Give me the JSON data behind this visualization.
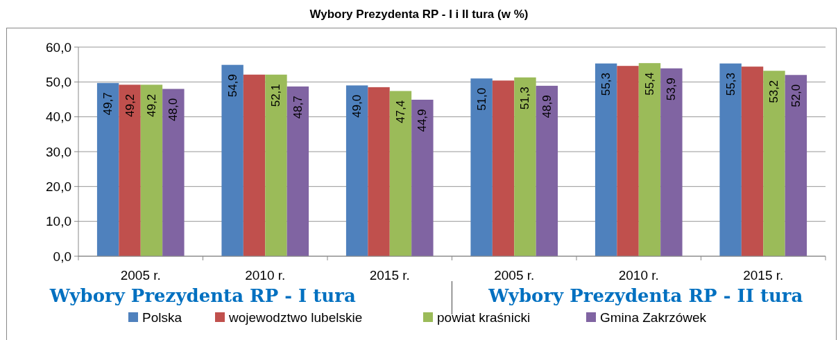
{
  "chart_data": {
    "type": "bar",
    "title": "Wybory Prezydenta RP - I i II tura (w %)",
    "categories": [
      "2005 r.",
      "2010 r.",
      "2015 r.",
      "2005 r.",
      "2010 r.",
      "2015 r."
    ],
    "series": [
      {
        "name": "Polska",
        "color": "#4f81bd",
        "values": [
          49.7,
          54.9,
          49.0,
          51.0,
          55.3,
          55.3
        ],
        "value_labels": [
          "49,7",
          "54,9",
          "49,0",
          "51,0",
          "55,3",
          "55,3"
        ]
      },
      {
        "name": "wojewodztwo lubelskie",
        "color": "#c0504d",
        "values": [
          49.2,
          52.1,
          48.5,
          50.4,
          54.6,
          54.4
        ],
        "value_labels": [
          "49,2",
          null,
          null,
          null,
          null,
          null
        ]
      },
      {
        "name": "powiat kraśnicki",
        "color": "#9bbb59",
        "values": [
          49.2,
          52.1,
          47.4,
          51.3,
          55.4,
          53.2
        ],
        "value_labels": [
          "49,2",
          "52,1",
          "47,4",
          "51,3",
          "55,4",
          "53,2"
        ]
      },
      {
        "name": "Gmina Zakrzówek",
        "color": "#8064a2",
        "values": [
          48.0,
          48.7,
          44.9,
          48.9,
          53.9,
          52.0
        ],
        "value_labels": [
          "48,0",
          "48,7",
          "44,9",
          "48,9",
          "53,9",
          "52,0"
        ]
      }
    ],
    "ylim": [
      0,
      60
    ],
    "yticks": [
      {
        "value": 0,
        "label": "0,0"
      },
      {
        "value": 10,
        "label": "10,0"
      },
      {
        "value": 20,
        "label": "20,0"
      },
      {
        "value": 30,
        "label": "30,0"
      },
      {
        "value": 40,
        "label": "40,0"
      },
      {
        "value": 50,
        "label": "50,0"
      },
      {
        "value": 60,
        "label": "60,0"
      }
    ],
    "grid": "y",
    "legend": "bottom",
    "annotations": [
      "Wybory Prezydenta RP - I tura",
      "Wybory Prezydenta RP - II tura"
    ]
  }
}
